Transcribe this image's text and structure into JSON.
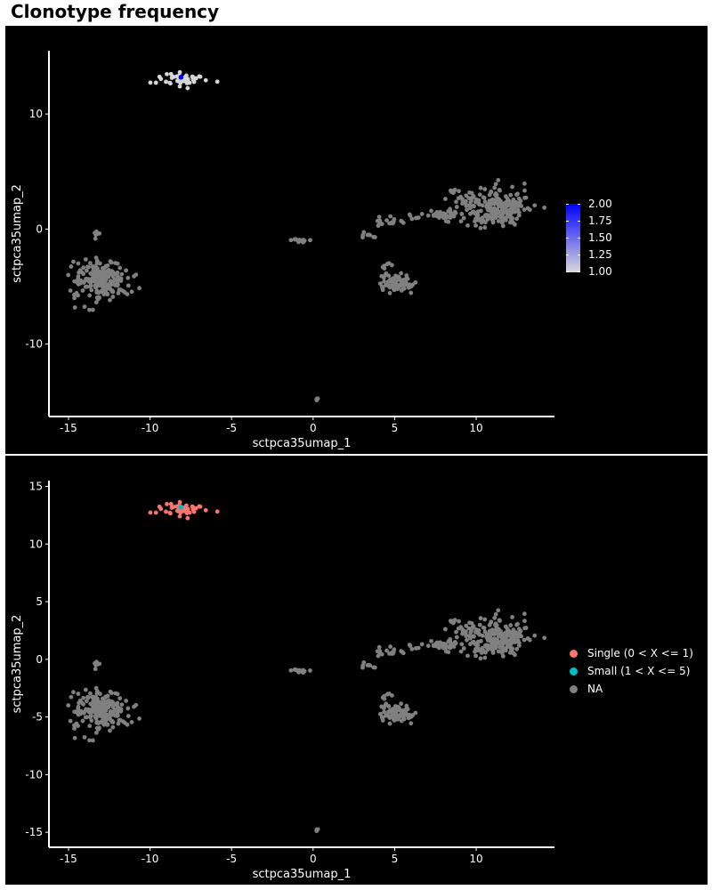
{
  "title": "Clonotype frequency",
  "chart_data": [
    {
      "type": "scatter",
      "xlabel": "sctpca35umap_1",
      "ylabel": "sctpca35umap_2",
      "xlim": [
        -16.2,
        14.8
      ],
      "ylim": [
        -16.3,
        15.5
      ],
      "xticks": [
        -15,
        -10,
        -5,
        0,
        5,
        10
      ],
      "yticks": [
        -10,
        0,
        10
      ],
      "grid": false,
      "legend": {
        "type": "colorbar",
        "position": "right",
        "range": [
          1.0,
          2.0
        ],
        "ticks": [
          "2.00",
          "1.75",
          "1.50",
          "1.25",
          "1.00"
        ],
        "low_color": "#d9d9d9",
        "high_color": "#0000ff"
      },
      "na_color": "#808080",
      "highlight": [
        {
          "x": -8.1,
          "y": 13.2,
          "value": 2.0
        }
      ]
    },
    {
      "type": "scatter",
      "xlabel": "sctpca35umap_1",
      "ylabel": "sctpca35umap_2",
      "xlim": [
        -16.2,
        14.8
      ],
      "ylim": [
        -16.3,
        15.5
      ],
      "xticks": [
        -15,
        -10,
        -5,
        0,
        5,
        10
      ],
      "yticks": [
        -15,
        -10,
        -5,
        0,
        5,
        10,
        15
      ],
      "grid": false,
      "legend": {
        "type": "categorical",
        "position": "right",
        "entries": [
          {
            "label": "Single (0 < X <= 1)",
            "color": "#f8766d"
          },
          {
            "label": "Small (1 < X <= 5)",
            "color": "#00bfc4"
          },
          {
            "label": "NA",
            "color": "#808080"
          }
        ]
      }
    }
  ],
  "clusters": [
    {
      "cx": -8.0,
      "cy": 13.0,
      "sx": 0.75,
      "sy": 0.3,
      "n": 45,
      "group": "clone"
    },
    {
      "cx": -13.0,
      "cy": -4.4,
      "sx": 0.85,
      "sy": 0.85,
      "n": 210,
      "group": "na"
    },
    {
      "cx": -13.2,
      "cy": -0.6,
      "sx": 0.12,
      "sy": 0.25,
      "n": 6,
      "group": "na"
    },
    {
      "cx": -1.0,
      "cy": -1.0,
      "sx": 0.3,
      "sy": 0.07,
      "n": 14,
      "group": "na"
    },
    {
      "cx": 0.15,
      "cy": -14.8,
      "sx": 0.08,
      "sy": 0.07,
      "n": 3,
      "group": "na"
    },
    {
      "cx": 3.4,
      "cy": -0.6,
      "sx": 0.25,
      "sy": 0.15,
      "n": 8,
      "group": "na"
    },
    {
      "cx": 4.5,
      "cy": -3.5,
      "sx": 0.25,
      "sy": 0.6,
      "n": 10,
      "group": "na"
    },
    {
      "cx": 5.1,
      "cy": -4.8,
      "sx": 0.55,
      "sy": 0.4,
      "n": 70,
      "group": "na"
    },
    {
      "cx": 4.5,
      "cy": 0.6,
      "sx": 0.45,
      "sy": 0.2,
      "n": 18,
      "group": "na"
    },
    {
      "cx": 6.0,
      "cy": 1.1,
      "sx": 0.4,
      "sy": 0.1,
      "n": 5,
      "group": "na"
    },
    {
      "cx": 7.9,
      "cy": 1.3,
      "sx": 0.55,
      "sy": 0.2,
      "n": 45,
      "group": "na"
    },
    {
      "cx": 8.6,
      "cy": 3.3,
      "sx": 0.3,
      "sy": 0.1,
      "n": 8,
      "group": "na"
    },
    {
      "cx": 9.5,
      "cy": 2.3,
      "sx": 0.4,
      "sy": 0.45,
      "n": 25,
      "group": "na"
    },
    {
      "cx": 11.3,
      "cy": 1.9,
      "sx": 0.9,
      "sy": 0.8,
      "n": 230,
      "group": "na"
    }
  ]
}
